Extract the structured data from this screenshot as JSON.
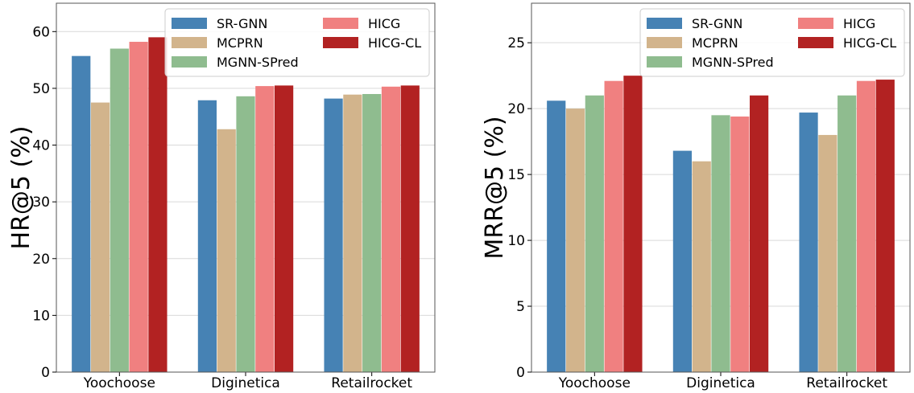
{
  "chart_data": [
    {
      "type": "bar",
      "ylabel": "HR@5 (%)",
      "xlabel": "",
      "categories": [
        "Yoochoose",
        "Diginetica",
        "Retailrocket"
      ],
      "ylim": [
        0,
        65
      ],
      "yticks": [
        0,
        10,
        20,
        30,
        40,
        50,
        60
      ],
      "grid": true,
      "legend_position": "top-right",
      "series": [
        {
          "name": "SR-GNN",
          "color": "#4682b4",
          "values": [
            55.7,
            47.9,
            48.2
          ]
        },
        {
          "name": "MCPRN",
          "color": "#d2b48c",
          "values": [
            47.5,
            42.8,
            48.9
          ]
        },
        {
          "name": "MGNN-SPred",
          "color": "#8fbc8f",
          "values": [
            57.0,
            48.6,
            49.0
          ]
        },
        {
          "name": "HICG",
          "color": "#f08080",
          "values": [
            58.2,
            50.4,
            50.3
          ]
        },
        {
          "name": "HICG-CL",
          "color": "#b22222",
          "values": [
            59.0,
            50.5,
            50.5
          ]
        }
      ]
    },
    {
      "type": "bar",
      "ylabel": "MRR@5 (%)",
      "xlabel": "",
      "categories": [
        "Yoochoose",
        "Diginetica",
        "Retailrocket"
      ],
      "ylim": [
        0,
        28
      ],
      "yticks": [
        0,
        5,
        10,
        15,
        20,
        25
      ],
      "grid": true,
      "legend_position": "top-right",
      "series": [
        {
          "name": "SR-GNN",
          "color": "#4682b4",
          "values": [
            20.6,
            16.8,
            19.7
          ]
        },
        {
          "name": "MCPRN",
          "color": "#d2b48c",
          "values": [
            20.0,
            16.0,
            18.0
          ]
        },
        {
          "name": "MGNN-SPred",
          "color": "#8fbc8f",
          "values": [
            21.0,
            19.5,
            21.0
          ]
        },
        {
          "name": "HICG",
          "color": "#f08080",
          "values": [
            22.1,
            19.4,
            22.1
          ]
        },
        {
          "name": "HICG-CL",
          "color": "#b22222",
          "values": [
            22.5,
            21.0,
            22.2
          ]
        }
      ]
    }
  ]
}
